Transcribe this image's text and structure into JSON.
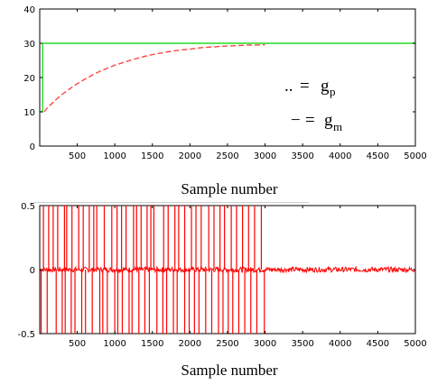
{
  "chart_data": [
    {
      "type": "line",
      "xlabel": "Sample number",
      "xlim": [
        1,
        5000
      ],
      "ylim": [
        0,
        40
      ],
      "x_ticks": [
        "500",
        "1000",
        "1500",
        "2000",
        "2500",
        "3000",
        "3500",
        "4000",
        "4500",
        "5000"
      ],
      "y_ticks": [
        "0",
        "10",
        "20",
        "30",
        "40"
      ],
      "legend": {
        "entries": [
          {
            "marker": "..",
            "eq": "=",
            "symbol": "g",
            "sub": "p"
          },
          {
            "marker": "−",
            "eq": "=",
            "symbol": "g",
            "sub": "m"
          }
        ]
      },
      "series": [
        {
          "style": "dashed",
          "color": "#ff4444",
          "x": [
            60,
            100,
            200,
            300,
            400,
            500,
            600,
            700,
            800,
            900,
            1000,
            1100,
            1200,
            1300,
            1400,
            1500,
            1600,
            1700,
            1800,
            1900,
            2000,
            2100,
            2200,
            2300,
            2400,
            2500,
            2600,
            2700,
            2800,
            2900,
            3000
          ],
          "y": [
            10,
            11.1,
            13.2,
            15.1,
            16.7,
            18.2,
            19.5,
            20.7,
            21.8,
            22.7,
            23.6,
            24.3,
            25.0,
            25.6,
            26.2,
            26.7,
            27.1,
            27.5,
            27.8,
            28.1,
            28.3,
            28.6,
            28.8,
            28.9,
            29.1,
            29.2,
            29.3,
            29.4,
            29.5,
            29.5,
            29.6
          ]
        },
        {
          "style": "solid",
          "color": "#22dd22",
          "x": [
            1,
            40,
            40,
            5000
          ],
          "y": [
            10,
            10,
            30,
            30
          ]
        }
      ]
    },
    {
      "type": "line",
      "xlabel": "Sample number",
      "xlim": [
        1,
        5000
      ],
      "ylim": [
        -0.5,
        0.5
      ],
      "x_ticks": [
        "500",
        "1000",
        "1500",
        "2000",
        "2500",
        "3000",
        "3500",
        "4000",
        "4500",
        "5000"
      ],
      "y_ticks": [
        "-0.5",
        "0",
        "0.5"
      ],
      "series": [
        {
          "style": "solid",
          "color": "#ff0000",
          "baseline": 0,
          "noise_amplitude": 0.02,
          "spike_region": [
            1,
            3000
          ],
          "spikes_up_x": [
            50,
            120,
            180,
            240,
            330,
            360,
            430,
            520,
            580,
            660,
            720,
            760,
            860,
            960,
            1030,
            1090,
            1150,
            1250,
            1290,
            1350,
            1430,
            1480,
            1520,
            1650,
            1710,
            1800,
            1850,
            1930,
            2020,
            2080,
            2150,
            2250,
            2320,
            2400,
            2460,
            2550,
            2620,
            2700,
            2780,
            2860,
            2950
          ],
          "spikes_down_x": [
            20,
            100,
            220,
            300,
            340,
            420,
            470,
            560,
            610,
            700,
            800,
            840,
            900,
            1000,
            1040,
            1100,
            1190,
            1230,
            1320,
            1400,
            1460,
            1560,
            1640,
            1690,
            1780,
            1830,
            1930,
            1990,
            2060,
            2120,
            2210,
            2290,
            2380,
            2440,
            2510,
            2570,
            2650,
            2730,
            2810,
            2890,
            2990
          ]
        }
      ]
    }
  ]
}
